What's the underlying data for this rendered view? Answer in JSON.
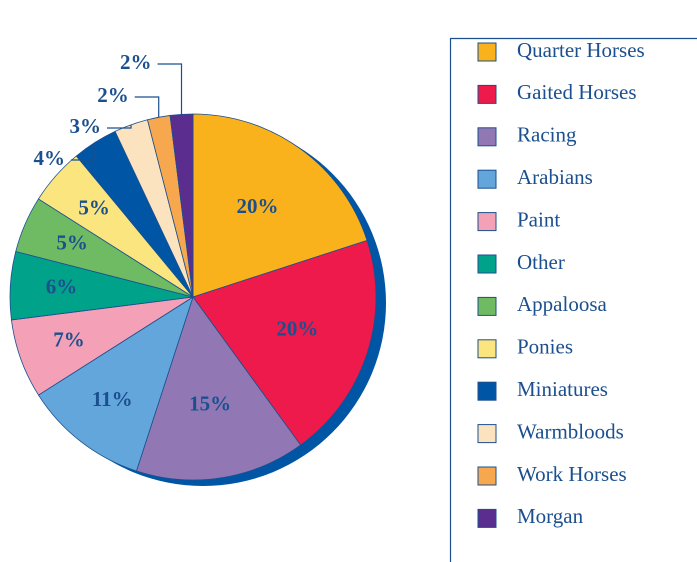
{
  "chart_data": {
    "type": "pie",
    "categories": [
      "Quarter Horses",
      "Gaited Horses",
      "Racing",
      "Arabians",
      "Paint",
      "Other",
      "Appaloosa",
      "Ponies",
      "Miniatures",
      "Warmbloods",
      "Work Horses",
      "Morgan"
    ],
    "values": [
      20,
      20,
      15,
      11,
      7,
      6,
      5,
      5,
      4,
      3,
      2,
      2
    ],
    "value_labels": [
      "20%",
      "20%",
      "15%",
      "11%",
      "7%",
      "6%",
      "5%",
      "5%",
      "4%",
      "3%",
      "2%",
      "2%"
    ],
    "colors": [
      "#f9b21b",
      "#ee1a4c",
      "#9178b4",
      "#63a6dc",
      "#f4a0b6",
      "#00a38a",
      "#6ebb63",
      "#fbe57e",
      "#0055a5",
      "#fce3c0",
      "#f7a84e",
      "#5a2d8e"
    ],
    "legend": "right"
  }
}
